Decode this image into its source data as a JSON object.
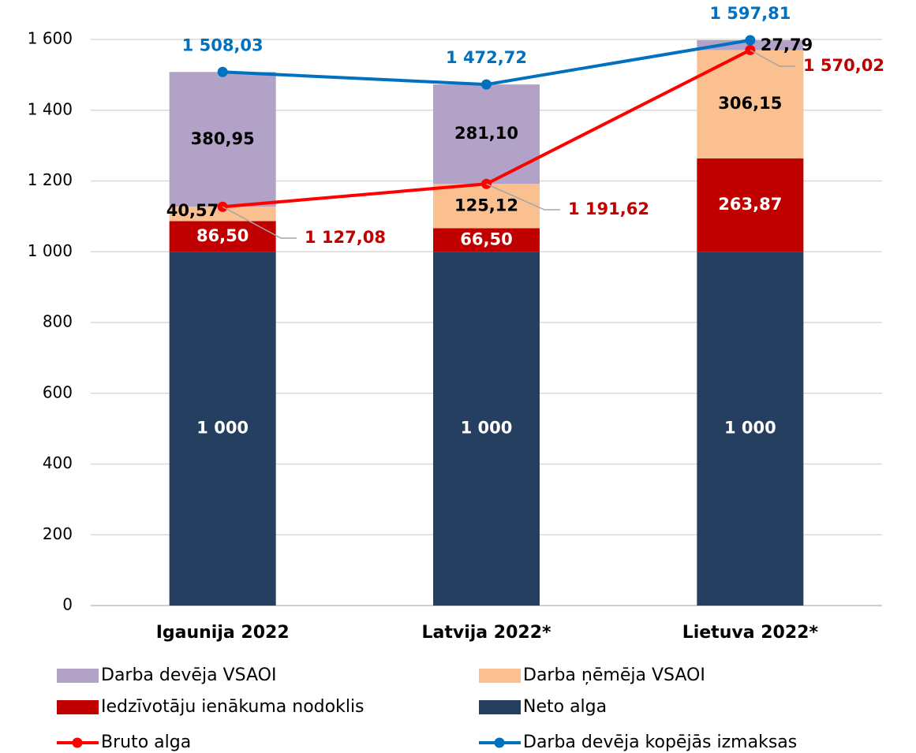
{
  "chart_data": {
    "type": "bar",
    "stacked": true,
    "categories": [
      "Igaunija 2022",
      "Latvija 2022*",
      "Lietuva 2022*"
    ],
    "ylim": [
      0,
      1600
    ],
    "yticks": [
      0,
      200,
      400,
      600,
      800,
      {
        "value": 1000,
        "label": "1 000"
      },
      {
        "value": 1200,
        "label": "1 200"
      },
      {
        "value": 1400,
        "label": "1 400"
      },
      {
        "value": 1600,
        "label": "1 600"
      }
    ],
    "grid": true,
    "series": [
      {
        "name": "Neto alga",
        "type": "bar",
        "color": "#243f60",
        "label_color": "#ffffff",
        "values": [
          1000,
          1000,
          1000
        ],
        "value_labels": [
          "1 000",
          "1 000",
          "1 000"
        ]
      },
      {
        "name": "Iedzīvotāju ienākuma nodoklis",
        "type": "bar",
        "color": "#c00000",
        "label_color": "#ffffff",
        "values": [
          86.5,
          66.5,
          263.87
        ],
        "value_labels": [
          "86,50",
          "66,50",
          "263,87"
        ]
      },
      {
        "name": "Darba ņēmēja VSAOI",
        "type": "bar",
        "color": "#fac090",
        "label_color": "#000000",
        "values": [
          40.57,
          125.12,
          306.15
        ],
        "value_labels": [
          "40,57",
          "125,12",
          "306,15"
        ]
      },
      {
        "name": "Darba devēja VSAOI",
        "type": "bar",
        "color": "#b3a2c7",
        "label_color": "#000000",
        "values": [
          380.95,
          281.1,
          27.79
        ],
        "value_labels": [
          "380,95",
          "281,10",
          "27,79"
        ]
      },
      {
        "name": "Bruto alga",
        "type": "line",
        "color": "#ff0000",
        "label_color": "#c00000",
        "values": [
          1127.08,
          1191.62,
          1570.02
        ],
        "value_labels": [
          "1 127,08",
          "1 191,62",
          "1 570,02"
        ]
      },
      {
        "name": "Darba devēja kopējās izmaksas",
        "type": "line",
        "color": "#0070c0",
        "label_color": "#0070c0",
        "values": [
          1508.03,
          1472.72,
          1597.81
        ],
        "value_labels": [
          "1 508,03",
          "1 472,72",
          "1 597,81"
        ]
      }
    ]
  }
}
